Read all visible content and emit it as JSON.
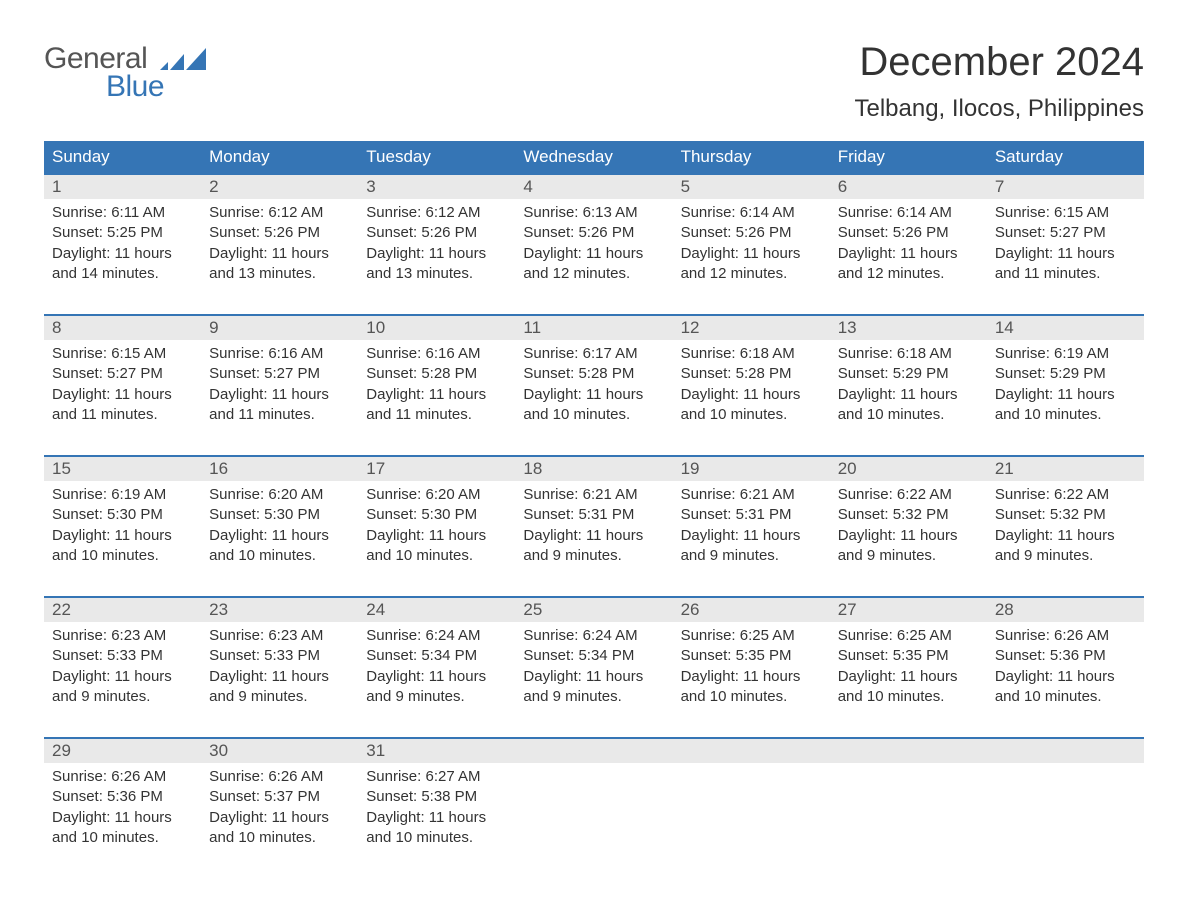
{
  "logo": {
    "top": "General",
    "bottom": "Blue"
  },
  "title": "December 2024",
  "location": "Telbang, Ilocos, Philippines",
  "colors": {
    "header_bg": "#3575b5",
    "daynum_bg": "#e9e9e9",
    "text": "#333333",
    "logo_blue": "#3575b5",
    "border_rule": "#3575b5"
  },
  "weekdays": [
    "Sunday",
    "Monday",
    "Tuesday",
    "Wednesday",
    "Thursday",
    "Friday",
    "Saturday"
  ],
  "weeks": [
    [
      {
        "day": "1",
        "sunrise": "Sunrise: 6:11 AM",
        "sunset": "Sunset: 5:25 PM",
        "day1": "Daylight: 11 hours",
        "day2": "and 14 minutes."
      },
      {
        "day": "2",
        "sunrise": "Sunrise: 6:12 AM",
        "sunset": "Sunset: 5:26 PM",
        "day1": "Daylight: 11 hours",
        "day2": "and 13 minutes."
      },
      {
        "day": "3",
        "sunrise": "Sunrise: 6:12 AM",
        "sunset": "Sunset: 5:26 PM",
        "day1": "Daylight: 11 hours",
        "day2": "and 13 minutes."
      },
      {
        "day": "4",
        "sunrise": "Sunrise: 6:13 AM",
        "sunset": "Sunset: 5:26 PM",
        "day1": "Daylight: 11 hours",
        "day2": "and 12 minutes."
      },
      {
        "day": "5",
        "sunrise": "Sunrise: 6:14 AM",
        "sunset": "Sunset: 5:26 PM",
        "day1": "Daylight: 11 hours",
        "day2": "and 12 minutes."
      },
      {
        "day": "6",
        "sunrise": "Sunrise: 6:14 AM",
        "sunset": "Sunset: 5:26 PM",
        "day1": "Daylight: 11 hours",
        "day2": "and 12 minutes."
      },
      {
        "day": "7",
        "sunrise": "Sunrise: 6:15 AM",
        "sunset": "Sunset: 5:27 PM",
        "day1": "Daylight: 11 hours",
        "day2": "and 11 minutes."
      }
    ],
    [
      {
        "day": "8",
        "sunrise": "Sunrise: 6:15 AM",
        "sunset": "Sunset: 5:27 PM",
        "day1": "Daylight: 11 hours",
        "day2": "and 11 minutes."
      },
      {
        "day": "9",
        "sunrise": "Sunrise: 6:16 AM",
        "sunset": "Sunset: 5:27 PM",
        "day1": "Daylight: 11 hours",
        "day2": "and 11 minutes."
      },
      {
        "day": "10",
        "sunrise": "Sunrise: 6:16 AM",
        "sunset": "Sunset: 5:28 PM",
        "day1": "Daylight: 11 hours",
        "day2": "and 11 minutes."
      },
      {
        "day": "11",
        "sunrise": "Sunrise: 6:17 AM",
        "sunset": "Sunset: 5:28 PM",
        "day1": "Daylight: 11 hours",
        "day2": "and 10 minutes."
      },
      {
        "day": "12",
        "sunrise": "Sunrise: 6:18 AM",
        "sunset": "Sunset: 5:28 PM",
        "day1": "Daylight: 11 hours",
        "day2": "and 10 minutes."
      },
      {
        "day": "13",
        "sunrise": "Sunrise: 6:18 AM",
        "sunset": "Sunset: 5:29 PM",
        "day1": "Daylight: 11 hours",
        "day2": "and 10 minutes."
      },
      {
        "day": "14",
        "sunrise": "Sunrise: 6:19 AM",
        "sunset": "Sunset: 5:29 PM",
        "day1": "Daylight: 11 hours",
        "day2": "and 10 minutes."
      }
    ],
    [
      {
        "day": "15",
        "sunrise": "Sunrise: 6:19 AM",
        "sunset": "Sunset: 5:30 PM",
        "day1": "Daylight: 11 hours",
        "day2": "and 10 minutes."
      },
      {
        "day": "16",
        "sunrise": "Sunrise: 6:20 AM",
        "sunset": "Sunset: 5:30 PM",
        "day1": "Daylight: 11 hours",
        "day2": "and 10 minutes."
      },
      {
        "day": "17",
        "sunrise": "Sunrise: 6:20 AM",
        "sunset": "Sunset: 5:30 PM",
        "day1": "Daylight: 11 hours",
        "day2": "and 10 minutes."
      },
      {
        "day": "18",
        "sunrise": "Sunrise: 6:21 AM",
        "sunset": "Sunset: 5:31 PM",
        "day1": "Daylight: 11 hours",
        "day2": "and 9 minutes."
      },
      {
        "day": "19",
        "sunrise": "Sunrise: 6:21 AM",
        "sunset": "Sunset: 5:31 PM",
        "day1": "Daylight: 11 hours",
        "day2": "and 9 minutes."
      },
      {
        "day": "20",
        "sunrise": "Sunrise: 6:22 AM",
        "sunset": "Sunset: 5:32 PM",
        "day1": "Daylight: 11 hours",
        "day2": "and 9 minutes."
      },
      {
        "day": "21",
        "sunrise": "Sunrise: 6:22 AM",
        "sunset": "Sunset: 5:32 PM",
        "day1": "Daylight: 11 hours",
        "day2": "and 9 minutes."
      }
    ],
    [
      {
        "day": "22",
        "sunrise": "Sunrise: 6:23 AM",
        "sunset": "Sunset: 5:33 PM",
        "day1": "Daylight: 11 hours",
        "day2": "and 9 minutes."
      },
      {
        "day": "23",
        "sunrise": "Sunrise: 6:23 AM",
        "sunset": "Sunset: 5:33 PM",
        "day1": "Daylight: 11 hours",
        "day2": "and 9 minutes."
      },
      {
        "day": "24",
        "sunrise": "Sunrise: 6:24 AM",
        "sunset": "Sunset: 5:34 PM",
        "day1": "Daylight: 11 hours",
        "day2": "and 9 minutes."
      },
      {
        "day": "25",
        "sunrise": "Sunrise: 6:24 AM",
        "sunset": "Sunset: 5:34 PM",
        "day1": "Daylight: 11 hours",
        "day2": "and 9 minutes."
      },
      {
        "day": "26",
        "sunrise": "Sunrise: 6:25 AM",
        "sunset": "Sunset: 5:35 PM",
        "day1": "Daylight: 11 hours",
        "day2": "and 10 minutes."
      },
      {
        "day": "27",
        "sunrise": "Sunrise: 6:25 AM",
        "sunset": "Sunset: 5:35 PM",
        "day1": "Daylight: 11 hours",
        "day2": "and 10 minutes."
      },
      {
        "day": "28",
        "sunrise": "Sunrise: 6:26 AM",
        "sunset": "Sunset: 5:36 PM",
        "day1": "Daylight: 11 hours",
        "day2": "and 10 minutes."
      }
    ],
    [
      {
        "day": "29",
        "sunrise": "Sunrise: 6:26 AM",
        "sunset": "Sunset: 5:36 PM",
        "day1": "Daylight: 11 hours",
        "day2": "and 10 minutes."
      },
      {
        "day": "30",
        "sunrise": "Sunrise: 6:26 AM",
        "sunset": "Sunset: 5:37 PM",
        "day1": "Daylight: 11 hours",
        "day2": "and 10 minutes."
      },
      {
        "day": "31",
        "sunrise": "Sunrise: 6:27 AM",
        "sunset": "Sunset: 5:38 PM",
        "day1": "Daylight: 11 hours",
        "day2": "and 10 minutes."
      },
      null,
      null,
      null,
      null
    ]
  ]
}
